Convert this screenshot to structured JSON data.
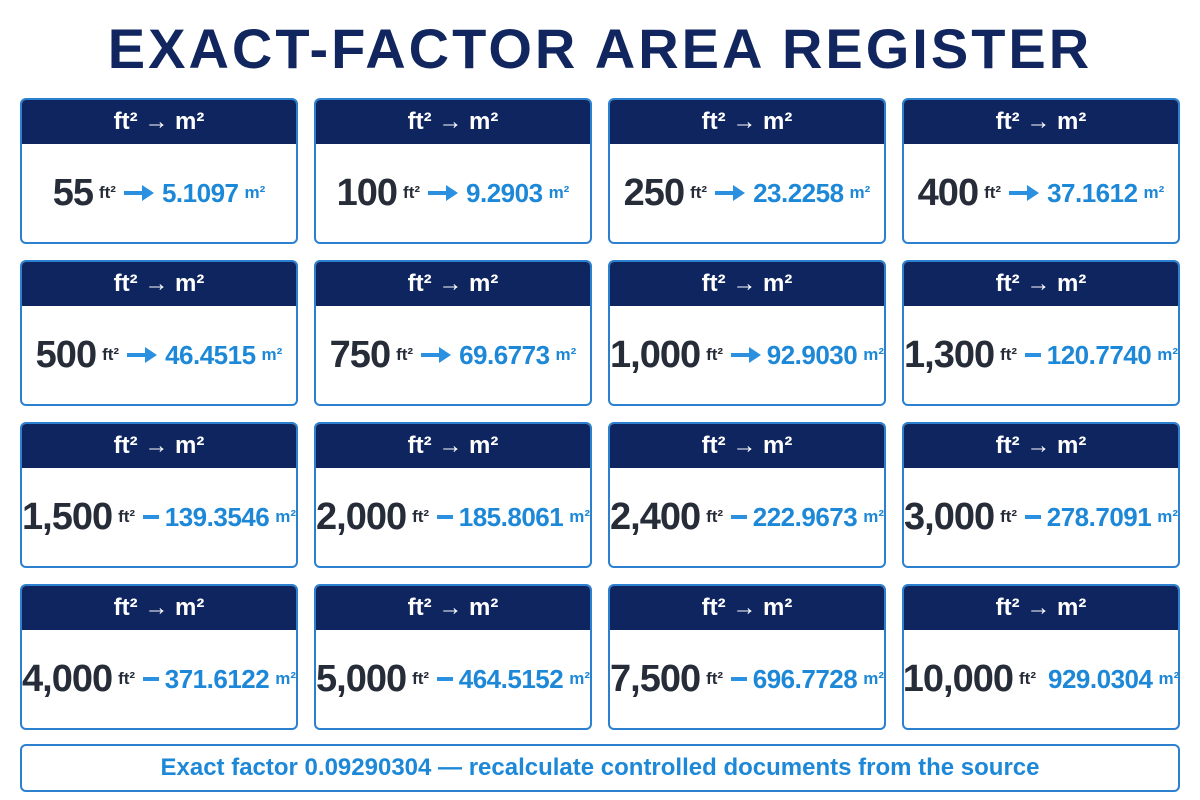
{
  "title": "EXACT-FACTOR AREA REGISTER",
  "cards": [
    {
      "header": "ft² → m²",
      "from": "55",
      "from_unit": "ft²",
      "to": "5.1097",
      "to_unit": "m²"
    },
    {
      "header": "ft² → m²",
      "from": "100",
      "from_unit": "ft²",
      "to": "9.2903",
      "to_unit": "m²"
    },
    {
      "header": "ft² → m²",
      "from": "250",
      "from_unit": "ft²",
      "to": "23.2258",
      "to_unit": "m²"
    },
    {
      "header": "ft² → m²",
      "from": "400",
      "from_unit": "ft²",
      "to": "37.1612",
      "to_unit": "m²"
    },
    {
      "header": "ft² → m²",
      "from": "500",
      "from_unit": "ft²",
      "to": "46.4515",
      "to_unit": "m²"
    },
    {
      "header": "ft² → m²",
      "from": "750",
      "from_unit": "ft²",
      "to": "69.6773",
      "to_unit": "m²"
    },
    {
      "header": "ft² → m²",
      "from": "1,000",
      "from_unit": "ft²",
      "to": "92.9030",
      "to_unit": "m²"
    },
    {
      "header": "ft² → m²",
      "from": "1,300",
      "from_unit": "ft²",
      "to": "120.7740",
      "to_unit": "m²"
    },
    {
      "header": "ft² → m²",
      "from": "1,500",
      "from_unit": "ft²",
      "to": "139.3546",
      "to_unit": "m²"
    },
    {
      "header": "ft² → m²",
      "from": "2,000",
      "from_unit": "ft²",
      "to": "185.8061",
      "to_unit": "m²"
    },
    {
      "header": "ft² → m²",
      "from": "2,400",
      "from_unit": "ft²",
      "to": "222.9673",
      "to_unit": "m²"
    },
    {
      "header": "ft² → m²",
      "from": "3,000",
      "from_unit": "ft²",
      "to": "278.7091",
      "to_unit": "m²"
    },
    {
      "header": "ft² → m²",
      "from": "4,000",
      "from_unit": "ft²",
      "to": "371.6122",
      "to_unit": "m²"
    },
    {
      "header": "ft² → m²",
      "from": "5,000",
      "from_unit": "ft²",
      "to": "464.5152",
      "to_unit": "m²"
    },
    {
      "header": "ft² → m²",
      "from": "7,500",
      "from_unit": "ft²",
      "to": "696.7728",
      "to_unit": "m²"
    },
    {
      "header": "ft² → m²",
      "from": "10,000",
      "from_unit": "ft²",
      "to": "929.0304",
      "to_unit": "m²"
    }
  ],
  "footer": "Exact factor 0.09290304 — recalculate controlled documents from the source"
}
